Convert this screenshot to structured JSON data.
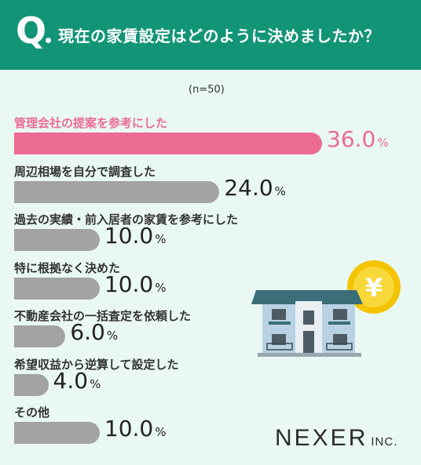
{
  "header": {
    "q_letter": "Q",
    "question": "現在の家賃設定はどのように決めましたか？"
  },
  "sample_note": "(n=50)",
  "colors": {
    "header_bg": "#129477",
    "background": "#eaf8f4",
    "highlight": "#ec6c93",
    "bar_default": "#a3a3a3"
  },
  "chart_data": {
    "type": "bar",
    "orientation": "horizontal",
    "title": "現在の家賃設定はどのように決めましたか？",
    "note": "(n=50)",
    "unit": "%",
    "xlim": [
      0,
      36
    ],
    "categories": [
      "管理会社の提案を参考にした",
      "周辺相場を自分で調査した",
      "過去の実績・前入居者の家賃を参考にした",
      "特に根拠なく決めた",
      "不動産会社の一括査定を依頼した",
      "希望収益から逆算して設定した",
      "その他"
    ],
    "values": [
      36.0,
      24.0,
      10.0,
      10.0,
      6.0,
      4.0,
      10.0
    ],
    "value_labels": [
      "36.0",
      "24.0",
      "10.0",
      "10.0",
      "6.0",
      "4.0",
      "10.0"
    ],
    "highlight_index": 0
  },
  "illustration": {
    "icon": "apartment-building-icon",
    "coin_icon": "yen-coin-icon",
    "coin_symbol": "¥"
  },
  "logo": {
    "main": "NEXER",
    "suffix": "INC."
  }
}
